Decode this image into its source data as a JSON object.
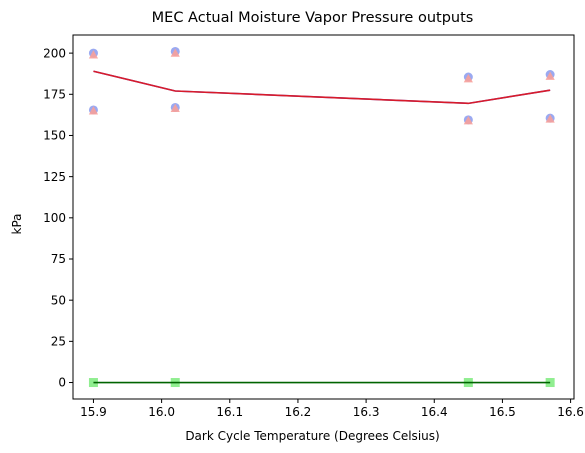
{
  "chart_data": {
    "type": "scatter",
    "title": "MEC Actual Moisture Vapor Pressure outputs",
    "xlabel": "Dark Cycle Temperature (Degrees Celsius)",
    "ylabel": "kPa",
    "xlim": [
      15.87,
      16.605
    ],
    "ylim": [
      -10,
      211
    ],
    "x_ticks": [
      15.9,
      16.0,
      16.1,
      16.2,
      16.3,
      16.4,
      16.5,
      16.6
    ],
    "x_tick_labels": [
      "15.9",
      "16.0",
      "16.1",
      "16.2",
      "16.3",
      "16.4",
      "16.5",
      "16.6"
    ],
    "y_ticks": [
      0,
      25,
      50,
      75,
      100,
      125,
      150,
      175,
      200
    ],
    "y_tick_labels": [
      "0",
      "25",
      "50",
      "75",
      "100",
      "125",
      "150",
      "175",
      "200"
    ],
    "grid": false,
    "legend": "none",
    "series": [
      {
        "kind": "points",
        "marker": "circle",
        "color": "#8fa0f0",
        "opacity": 0.9,
        "x": [
          15.9,
          15.9,
          16.02,
          16.02,
          16.45,
          16.45,
          16.57,
          16.57
        ],
        "y": [
          165.5,
          200.0,
          167.0,
          201.0,
          159.5,
          185.5,
          160.5,
          187.0
        ]
      },
      {
        "kind": "points",
        "marker": "triangle",
        "color": "#f7a09a",
        "opacity": 0.9,
        "x": [
          15.9,
          15.9,
          16.02,
          16.02,
          16.45,
          16.45,
          16.57,
          16.57
        ],
        "y": [
          165.0,
          199.0,
          166.5,
          200.0,
          159.0,
          184.5,
          160.0,
          186.0
        ]
      },
      {
        "kind": "line",
        "color": "#6b5cd6",
        "x": [
          15.9,
          16.02,
          16.45,
          16.57
        ],
        "y": [
          189.0,
          177.0,
          169.5,
          177.5
        ]
      },
      {
        "kind": "line",
        "color": "#d81b2a",
        "x": [
          15.9,
          16.02,
          16.45,
          16.57
        ],
        "y": [
          189.0,
          177.0,
          169.5,
          177.5
        ]
      },
      {
        "kind": "points",
        "marker": "square",
        "color": "#90ee90",
        "opacity": 1,
        "x": [
          15.9,
          16.02,
          16.45,
          16.57
        ],
        "y": [
          0,
          0,
          0,
          0
        ]
      },
      {
        "kind": "line",
        "color": "#006400",
        "x": [
          15.9,
          16.02,
          16.45,
          16.57
        ],
        "y": [
          0,
          0,
          0,
          0
        ]
      }
    ]
  }
}
